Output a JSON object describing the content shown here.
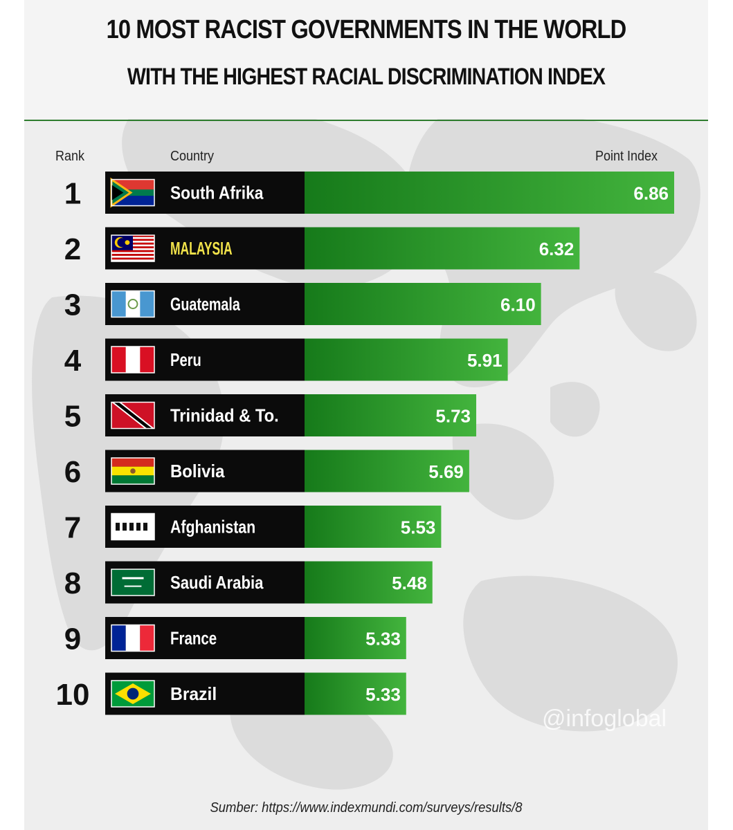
{
  "header": {
    "title": "10 MOST RACIST GOVERNMENTS IN THE WORLD",
    "subtitle": "WITH THE HIGHEST RACIAL DISCRIMINATION INDEX"
  },
  "columns": {
    "rank": "Rank",
    "country": "Country",
    "index": "Point Index"
  },
  "watermark": "@infoglobal",
  "source": "Sumber: https://www.indexmundi.com/surveys/results/8",
  "colors": {
    "bar_green_light": "#43b43d",
    "bar_green_dark": "#167a1a",
    "label_black": "#0b0b0b",
    "highlight_label": "#f2e34a",
    "rule_green": "#2f7d2f"
  },
  "chart_data": {
    "type": "bar",
    "orientation": "horizontal",
    "title": "10 MOST RACIST GOVERNMENTS IN THE WORLD",
    "subtitle": "WITH THE HIGHEST RACIAL DISCRIMINATION INDEX",
    "xlabel": "Point Index",
    "ylabel": "Country",
    "xlim": [
      4.75,
      6.86
    ],
    "grid": false,
    "legend": "none",
    "rows": [
      {
        "rank": "1",
        "country": "South Afrika",
        "value": 6.86,
        "label": "6.86",
        "flag": "south-africa-flag-icon"
      },
      {
        "rank": "2",
        "country": "MALAYSIA",
        "value": 6.32,
        "label": "6.32",
        "flag": "malaysia-flag-icon"
      },
      {
        "rank": "3",
        "country": "Guatemala",
        "value": 6.1,
        "label": "6.10",
        "flag": "guatemala-flag-icon"
      },
      {
        "rank": "4",
        "country": "Peru",
        "value": 5.91,
        "label": "5.91",
        "flag": "peru-flag-icon"
      },
      {
        "rank": "5",
        "country": "Trinidad & To.",
        "value": 5.73,
        "label": "5.73",
        "flag": "trinidad-tobago-flag-icon"
      },
      {
        "rank": "6",
        "country": "Bolivia",
        "value": 5.69,
        "label": "5.69",
        "flag": "bolivia-flag-icon"
      },
      {
        "rank": "7",
        "country": "Afghanistan",
        "value": 5.53,
        "label": "5.53",
        "flag": "afghanistan-flag-icon"
      },
      {
        "rank": "8",
        "country": "Saudi Arabia",
        "value": 5.48,
        "label": "5.48",
        "flag": "saudi-arabia-flag-icon"
      },
      {
        "rank": "9",
        "country": "France",
        "value": 5.33,
        "label": "5.33",
        "flag": "france-flag-icon"
      },
      {
        "rank": "10",
        "country": "Brazil",
        "value": 5.33,
        "label": "5.33",
        "flag": "brazil-flag-icon"
      }
    ]
  }
}
